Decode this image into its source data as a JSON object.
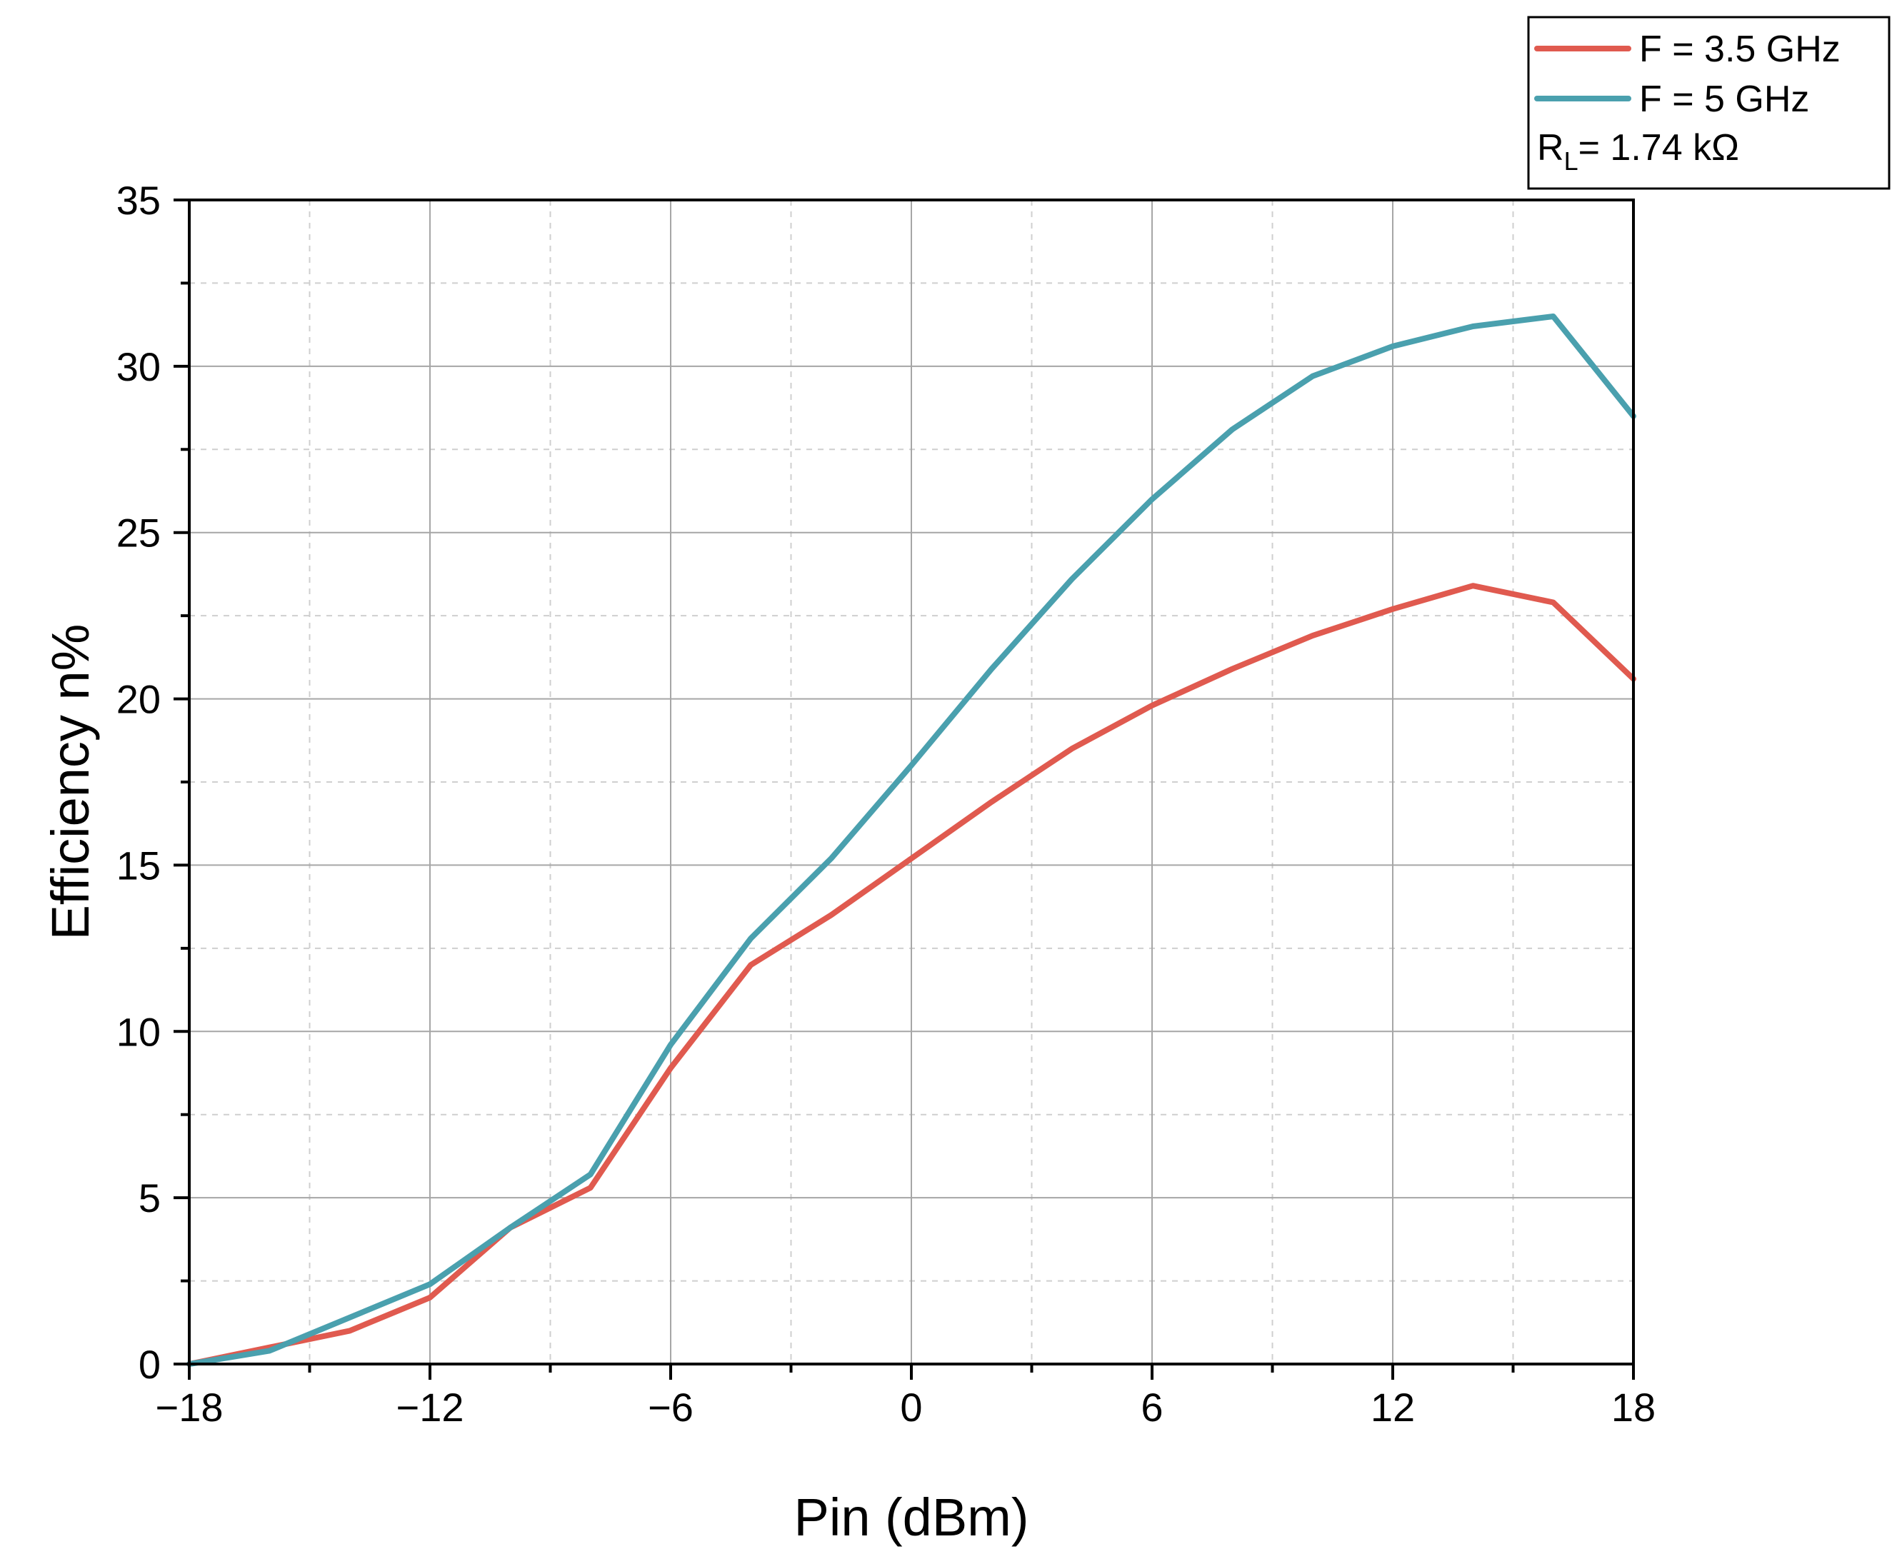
{
  "chart_data": {
    "type": "line",
    "title": "",
    "xlabel": "Pin (dBm)",
    "ylabel": "Efficiency n%",
    "xlim": [
      -18,
      18
    ],
    "ylim": [
      0,
      35
    ],
    "xticks": [
      -18,
      -12,
      -6,
      0,
      6,
      12,
      18
    ],
    "xtick_labels": [
      "−18",
      "−12",
      "−6",
      "0",
      "6",
      "12",
      "18"
    ],
    "yticks": [
      0,
      5,
      10,
      15,
      20,
      25,
      30,
      35
    ],
    "ytick_labels": [
      "0",
      "5",
      "10",
      "15",
      "20",
      "25",
      "30",
      "35"
    ],
    "grid": true,
    "legend_position": "top-right",
    "annotation": {
      "main": "R",
      "subscript": "L",
      "rest": "= 1.74 kΩ"
    },
    "series": [
      {
        "name": "F = 3.5 GHz",
        "color": "#e05a4f",
        "x": [
          -18,
          -16,
          -14,
          -12,
          -10,
          -8,
          -6,
          -4,
          -2,
          0,
          2,
          4,
          6,
          8,
          10,
          12,
          14,
          16,
          18
        ],
        "values": [
          0,
          0.5,
          1.0,
          2.0,
          4.1,
          5.3,
          8.9,
          12.0,
          13.5,
          15.2,
          16.9,
          18.5,
          19.8,
          20.9,
          21.9,
          22.7,
          23.4,
          22.9,
          20.6
        ]
      },
      {
        "name": "F = 5 GHz",
        "color": "#4aa0ae",
        "x": [
          -18,
          -16,
          -14,
          -12,
          -10,
          -8,
          -6,
          -4,
          -2,
          0,
          2,
          4,
          6,
          8,
          10,
          12,
          14,
          16,
          18
        ],
        "values": [
          0,
          0.4,
          1.4,
          2.4,
          4.1,
          5.7,
          9.6,
          12.8,
          15.2,
          18.0,
          20.9,
          23.6,
          26.0,
          28.1,
          29.7,
          30.6,
          31.2,
          31.5,
          28.5
        ]
      }
    ]
  }
}
